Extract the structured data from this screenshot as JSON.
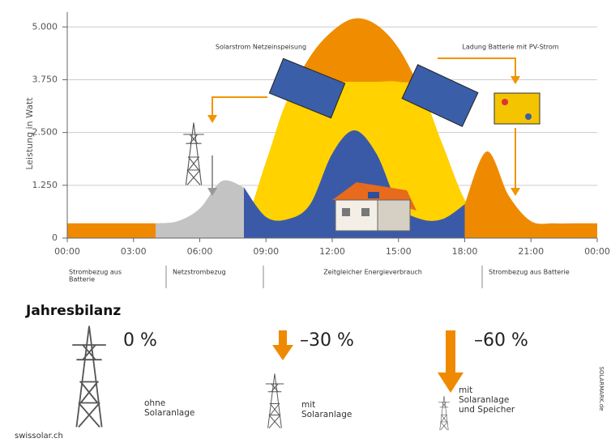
{
  "chart_data": {
    "type": "area",
    "y_label": "Leistung in Watt",
    "annotations": [
      "Solarstrom Netzeinspeisung",
      "Ladung Batterie mit PV-Strom"
    ],
    "x": [
      0,
      1,
      2,
      3,
      4,
      5,
      6,
      7,
      8,
      9,
      10,
      11,
      12,
      13,
      14,
      15,
      16,
      17,
      18,
      19,
      20,
      21,
      22,
      23,
      24
    ],
    "series": [
      {
        "color": "#f08c00",
        "values": [
          null,
          null,
          null,
          null,
          null,
          null,
          null,
          0,
          300,
          1800,
          3300,
          4300,
          4900,
          5200,
          5050,
          4500,
          3500,
          2200,
          900,
          200,
          0,
          null,
          null,
          null,
          null
        ]
      },
      {
        "color": "#ffd200",
        "values": [
          null,
          null,
          null,
          null,
          null,
          null,
          null,
          0,
          300,
          1800,
          3300,
          3700,
          3700,
          3700,
          3700,
          3700,
          3500,
          2200,
          900,
          200,
          0,
          null,
          null,
          null,
          null
        ]
      },
      {
        "color": "#ef8a00",
        "values": [
          350,
          350,
          350,
          350,
          350,
          null,
          null,
          null,
          null,
          null,
          null,
          null,
          null,
          null,
          null,
          null,
          null,
          null,
          800,
          2050,
          1000,
          400,
          350,
          350,
          350
        ]
      },
      {
        "color": "#c3c3c3",
        "values": [
          null,
          null,
          null,
          null,
          350,
          400,
          700,
          1350,
          1200,
          null,
          null,
          null,
          null,
          null,
          null,
          null,
          null,
          null,
          null,
          null,
          null,
          null,
          null,
          null,
          null
        ]
      },
      {
        "color": "#3a5aa8",
        "values": [
          null,
          null,
          null,
          null,
          null,
          null,
          null,
          null,
          1200,
          500,
          450,
          800,
          2000,
          2550,
          2000,
          800,
          450,
          450,
          800,
          null,
          null,
          null,
          null,
          null,
          null
        ]
      }
    ],
    "xlim": [
      0,
      24
    ],
    "ylim": [
      0,
      5350
    ],
    "xticks": [
      {
        "value": 0,
        "label": "00:00"
      },
      {
        "value": 3,
        "label": "03:00"
      },
      {
        "value": 6,
        "label": "06:00"
      },
      {
        "value": 9,
        "label": "09:00"
      },
      {
        "value": 12,
        "label": "12:00"
      },
      {
        "value": 15,
        "label": "15:00"
      },
      {
        "value": 18,
        "label": "18:00"
      },
      {
        "value": 21,
        "label": "21:00"
      },
      {
        "value": 24,
        "label": "00:00"
      }
    ],
    "yticks": [
      0,
      {
        "value": 1250,
        "label": "1.250"
      },
      {
        "value": 2500,
        "label": "2.500"
      },
      {
        "value": 3750,
        "label": "3.750"
      },
      {
        "value": 5000,
        "label": "5.000"
      }
    ],
    "grid": true,
    "phases": [
      [
        "Strombezug aus",
        "Batterie"
      ],
      [
        "Netzstrombezug"
      ],
      [
        "Zeitgleicher Energieverbrauch"
      ],
      [
        "Strombezug aus Batterie"
      ]
    ]
  },
  "summary": {
    "title": "Jahresbilanz",
    "items": [
      {
        "value": "0 %",
        "label": [
          "ohne",
          "Solaranlage"
        ]
      },
      {
        "value": "–30 %",
        "label": [
          "mit",
          "Solaranlage"
        ]
      },
      {
        "value": "–60 %",
        "label": [
          "mit",
          "Solaranlage",
          "und Speicher"
        ]
      }
    ]
  },
  "source": "swissolar.ch",
  "credit": "SOLARMARK.de"
}
